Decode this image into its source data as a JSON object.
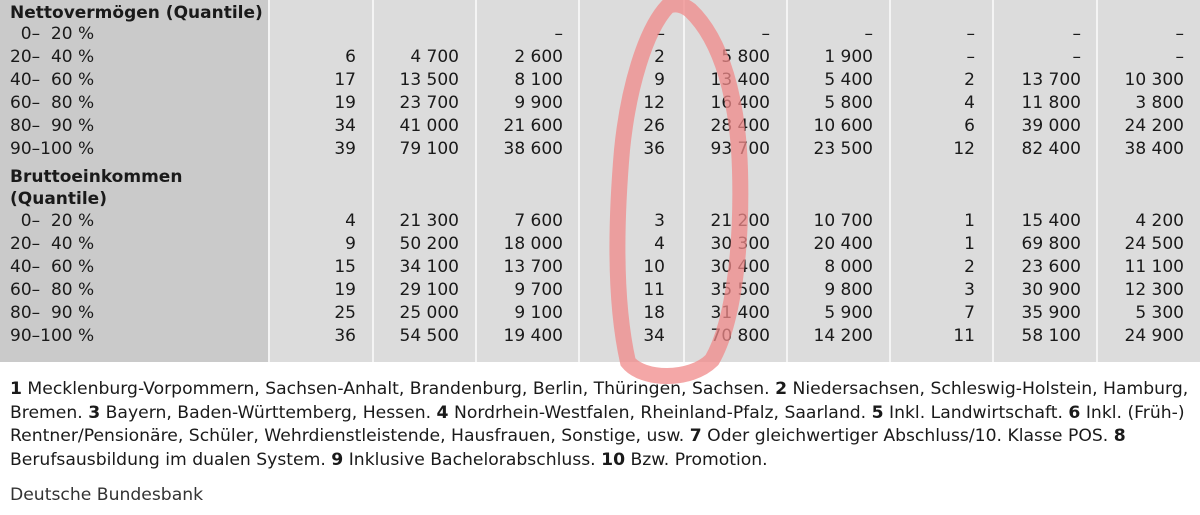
{
  "table": {
    "sections": [
      {
        "title_lines": [
          "Nettovermögen (Quantile)"
        ],
        "rows": [
          {
            "label": "  0–  20 %",
            "values": [
              "",
              "",
              "–",
              "–",
              "–",
              "–",
              "–",
              "–",
              "–"
            ]
          },
          {
            "label": "20–  40 %",
            "values": [
              "6",
              "4 700",
              "2 600",
              "2",
              "5 800",
              "1 900",
              "–",
              "–",
              "–"
            ]
          },
          {
            "label": "40–  60 %",
            "values": [
              "17",
              "13 500",
              "8 100",
              "9",
              "13 400",
              "5 400",
              "2",
              "13 700",
              "10 300"
            ]
          },
          {
            "label": "60–  80 %",
            "values": [
              "19",
              "23 700",
              "9 900",
              "12",
              "16 400",
              "5 800",
              "4",
              "11 800",
              "3 800"
            ]
          },
          {
            "label": "80–  90 %",
            "values": [
              "34",
              "41 000",
              "21 600",
              "26",
              "28 400",
              "10 600",
              "6",
              "39 000",
              "24 200"
            ]
          },
          {
            "label": "90–100 %",
            "values": [
              "39",
              "79 100",
              "38 600",
              "36",
              "93 700",
              "23 500",
              "12",
              "82 400",
              "38 400"
            ]
          }
        ]
      },
      {
        "title_lines": [
          "Bruttoeinkommen",
          "(Quantile)"
        ],
        "rows": [
          {
            "label": "  0–  20 %",
            "values": [
              "4",
              "21 300",
              "7 600",
              "3",
              "21 200",
              "10 700",
              "1",
              "15 400",
              "4 200"
            ]
          },
          {
            "label": "20–  40 %",
            "values": [
              "9",
              "50 200",
              "18 000",
              "4",
              "30 300",
              "20 400",
              "1",
              "69 800",
              "24 500"
            ]
          },
          {
            "label": "40–  60 %",
            "values": [
              "15",
              "34 100",
              "13 700",
              "10",
              "30 400",
              "8 000",
              "2",
              "23 600",
              "11 100"
            ]
          },
          {
            "label": "60–  80 %",
            "values": [
              "19",
              "29 100",
              "9 700",
              "11",
              "35 500",
              "9 800",
              "3",
              "30 900",
              "12 300"
            ]
          },
          {
            "label": "80–  90 %",
            "values": [
              "25",
              "25 000",
              "9 100",
              "18",
              "31 400",
              "5 900",
              "7",
              "35 900",
              "5 300"
            ]
          },
          {
            "label": "90–100 %",
            "values": [
              "36",
              "54 500",
              "19 400",
              "34",
              "70 800",
              "14 200",
              "11",
              "58 100",
              "24 900"
            ]
          }
        ]
      }
    ]
  },
  "footnotes": [
    {
      "num": "1",
      "text": " Mecklenburg-Vorpommern, Sachsen-Anhalt, Brandenburg, Berlin, Thüringen, Sachsen. "
    },
    {
      "num": "2",
      "text": " Niedersachsen, Schleswig-Holstein, Hamburg, Bremen. "
    },
    {
      "num": "3",
      "text": " Bayern, Baden-Württemberg, Hessen. "
    },
    {
      "num": "4",
      "text": " Nordrhein-Westfalen, Rheinland-Pfalz, Saarland. "
    },
    {
      "num": "5",
      "text": " Inkl. Landwirtschaft. "
    },
    {
      "num": "6",
      "text": " Inkl. (Früh-) Rentner/Pensionäre, Schüler, Wehrdienstleistende, Hausfrauen, Sonstige, usw. "
    },
    {
      "num": "7",
      "text": " Oder gleichwertiger Abschluss/10. Klasse POS. "
    },
    {
      "num": "8",
      "text": " Berufsausbildung im dualen System. "
    },
    {
      "num": "9",
      "text": " Inklusive Bachelorabschluss. "
    },
    {
      "num": "10",
      "text": " Bzw. Promotion."
    }
  ],
  "source": "Deutsche Bundesbank",
  "colors": {
    "label_column_bg": "#cacaca",
    "table_bg": "#dcdcdc",
    "annotation_circle": "#f08a8a"
  }
}
